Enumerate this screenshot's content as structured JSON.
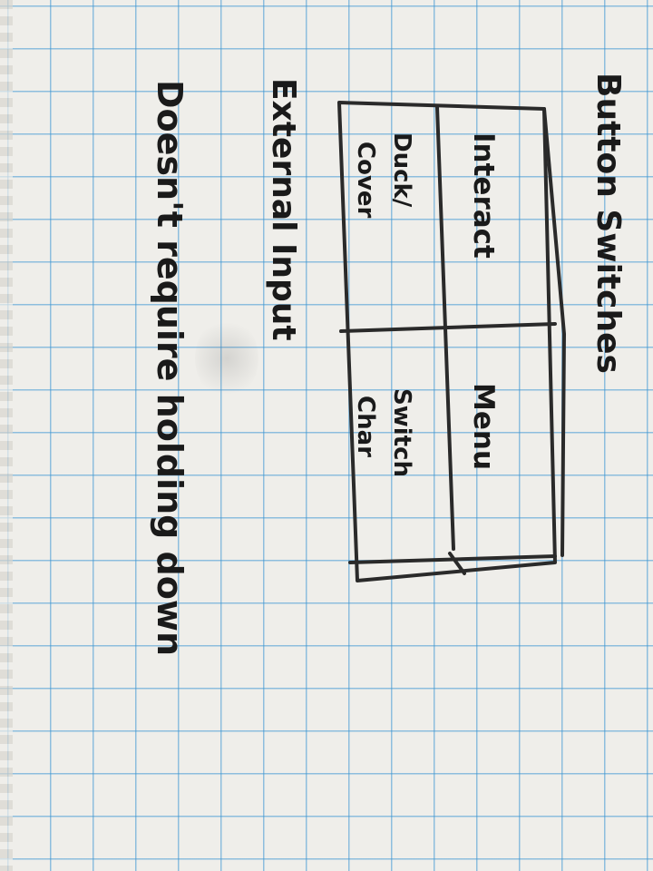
{
  "notes": {
    "title": "Button Switches",
    "box": {
      "top_left": "Interact",
      "top_right": "Menu",
      "bottom_left_line1": "Duck/",
      "bottom_left_line2": "Cover",
      "bottom_right_line1": "Switch",
      "bottom_right_line2": "Char"
    },
    "line1": "External Input",
    "line2": "Doesn't require holding down"
  },
  "colors": {
    "paper": "#efeeea",
    "grid": "#3c96d2",
    "ink": "#1a1a1a"
  }
}
